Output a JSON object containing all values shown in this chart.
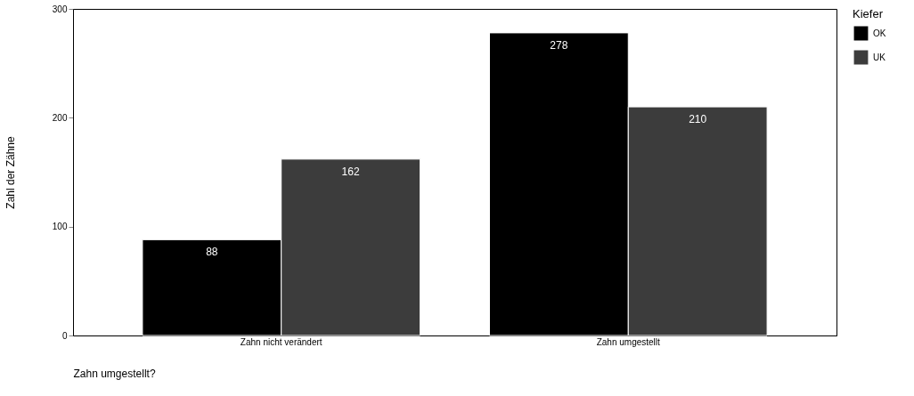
{
  "chart_data": {
    "type": "bar",
    "xlabel": "Zahn umgestellt?",
    "ylabel": "Zahl der Zähne",
    "legend_title": "Kiefer",
    "categories": [
      "Zahn nicht verändert",
      "Zahn umgestellt"
    ],
    "series": [
      {
        "name": "OK",
        "color": "#000000",
        "values": [
          88,
          278
        ]
      },
      {
        "name": "UK",
        "color": "#3c3c3c",
        "values": [
          162,
          210
        ]
      }
    ],
    "ylim": [
      0,
      300
    ],
    "yticks": [
      0,
      100,
      200,
      300
    ],
    "grid": false,
    "legend": "right",
    "data_labels": true
  }
}
